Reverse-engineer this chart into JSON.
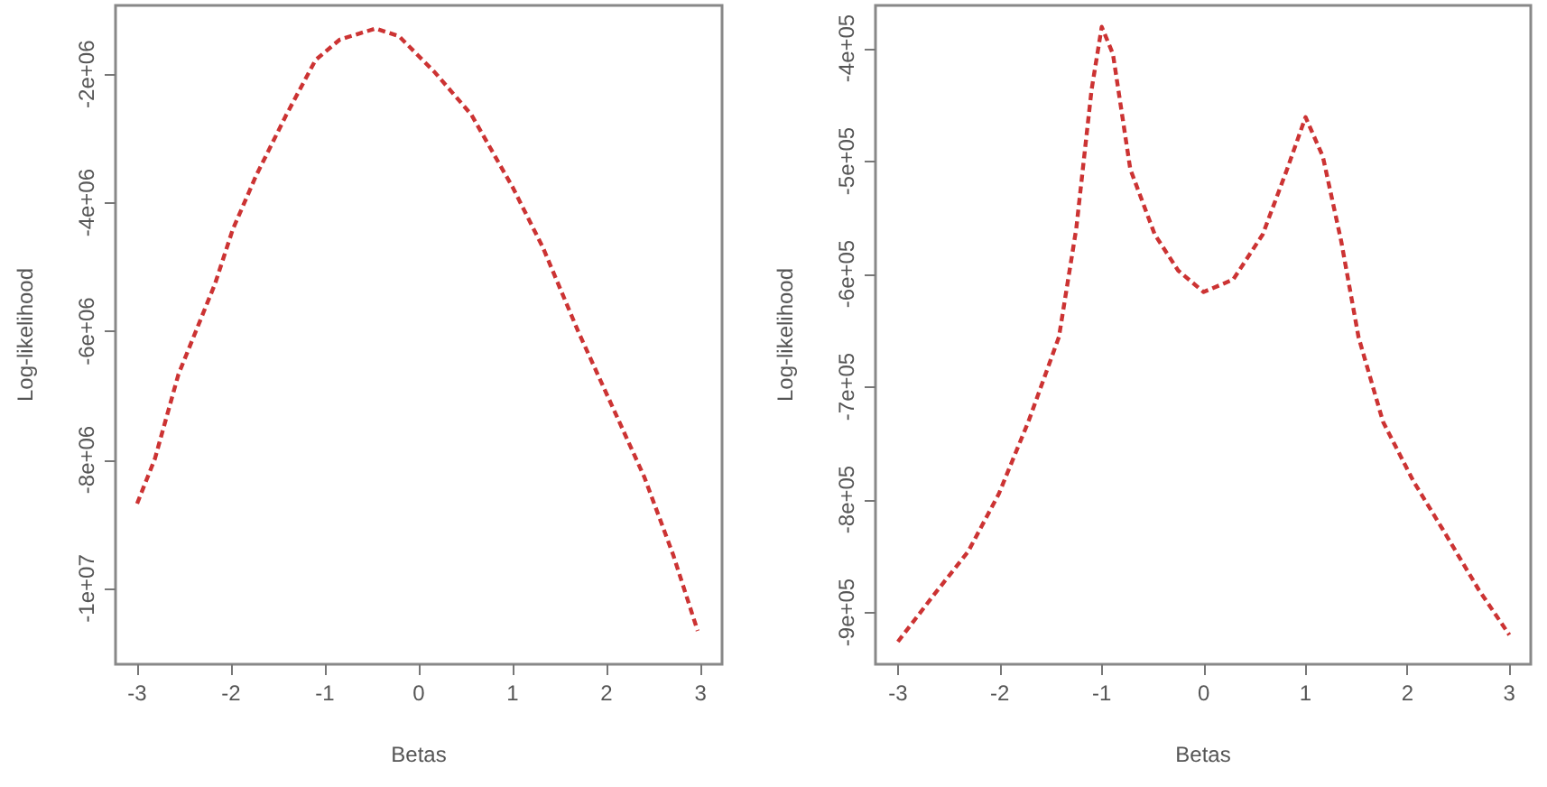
{
  "chart_data": [
    {
      "type": "line",
      "xlabel": "Betas",
      "ylabel": "Log-likelihood",
      "xlim": [
        -3.23,
        3.23
      ],
      "ylim": [
        -11180000,
        -930000
      ],
      "xticks": [
        -3,
        -2,
        -1,
        0,
        1,
        2,
        3
      ],
      "yticks": [
        {
          "value": -2000000,
          "label": "-2e+06"
        },
        {
          "value": -4000000,
          "label": "-4e+06"
        },
        {
          "value": -6000000,
          "label": "-6e+06"
        },
        {
          "value": -8000000,
          "label": "-8e+06"
        },
        {
          "value": -10000000,
          "label": "-1e+07"
        }
      ],
      "grid": false,
      "marker": "none",
      "line_style": "dashed",
      "series": [
        {
          "color": "#cc3333",
          "x": [
            -3,
            -2.81,
            -2.56,
            -2.17,
            -1.98,
            -1.73,
            -1.41,
            -1.1,
            -0.84,
            -0.46,
            -0.21,
            0.17,
            0.56,
            1,
            1.32,
            1.7,
            2.08,
            2.4,
            2.71,
            2.97
          ],
          "values": [
            -8680000,
            -7980000,
            -6670000,
            -5260000,
            -4410000,
            -3570000,
            -2630000,
            -1780000,
            -1460000,
            -1290000,
            -1410000,
            -1970000,
            -2630000,
            -3760000,
            -4690000,
            -6010000,
            -7230000,
            -8260000,
            -9480000,
            -10660000
          ]
        }
      ]
    },
    {
      "type": "line",
      "xlabel": "Betas",
      "ylabel": "Log-likelihood",
      "xlim": [
        -3.22,
        3.21
      ],
      "ylim": [
        -946000,
        -362000
      ],
      "xticks": [
        -3,
        -2,
        -1,
        0,
        1,
        2,
        3
      ],
      "yticks": [
        {
          "value": -400000,
          "label": "-4e+05"
        },
        {
          "value": -500000,
          "label": "-5e+05"
        },
        {
          "value": -600000,
          "label": "-6e+05"
        },
        {
          "value": -700000,
          "label": "-7e+05"
        },
        {
          "value": -800000,
          "label": "-8e+05"
        },
        {
          "value": -900000,
          "label": "-9e+05"
        }
      ],
      "grid": false,
      "marker": "none",
      "line_style": "dashed",
      "series": [
        {
          "color": "#cc3333",
          "x": [
            -3,
            -2.66,
            -2.31,
            -2.01,
            -1.72,
            -1.42,
            -1.25,
            -1.1,
            -1,
            -0.89,
            -0.72,
            -0.48,
            -0.25,
            0,
            0.29,
            0.58,
            0.82,
            1,
            1.17,
            1.35,
            1.52,
            1.76,
            2.06,
            2.35,
            2.7,
            3
          ],
          "values": [
            -926000,
            -886000,
            -846000,
            -795000,
            -731000,
            -656000,
            -560000,
            -437000,
            -381000,
            -405000,
            -507000,
            -565000,
            -597000,
            -616000,
            -605000,
            -565000,
            -507000,
            -461000,
            -496000,
            -571000,
            -656000,
            -731000,
            -784000,
            -827000,
            -880000,
            -920000
          ]
        }
      ]
    }
  ]
}
